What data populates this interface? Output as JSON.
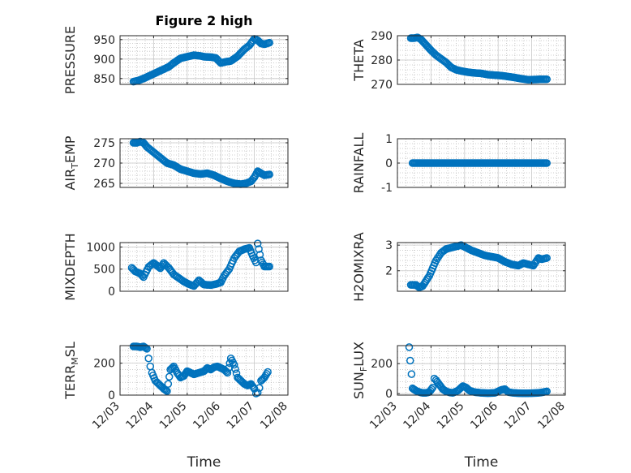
{
  "figure": {
    "title": "Figure 2 high",
    "xlabel": "Time",
    "marker_color": "#0072BD"
  },
  "chart_data": [
    {
      "type": "scatter",
      "ylabel": "PRESSURE",
      "ylim": [
        835,
        960
      ],
      "yticks": [
        850,
        900,
        950
      ],
      "x_range": [
        "12/03",
        "12/08"
      ],
      "x": [
        3.4,
        3.55,
        3.75,
        4.0,
        4.25,
        4.45,
        4.6,
        4.8,
        5.0,
        5.2,
        5.4,
        5.5,
        5.7,
        5.85,
        6.0,
        6.15,
        6.3,
        6.5,
        6.7,
        6.85,
        7.0,
        7.1,
        7.2,
        7.3,
        7.45
      ],
      "y": [
        842,
        845,
        852,
        862,
        872,
        880,
        890,
        902,
        906,
        910,
        908,
        906,
        905,
        903,
        890,
        893,
        895,
        907,
        925,
        935,
        952,
        948,
        940,
        938,
        942
      ]
    },
    {
      "type": "scatter",
      "ylabel": "THETA",
      "ylim": [
        270,
        290
      ],
      "yticks": [
        270,
        280,
        290
      ],
      "x_range": [
        "12/03",
        "12/08"
      ],
      "x": [
        3.4,
        3.5,
        3.6,
        3.7,
        3.8,
        3.9,
        4.0,
        4.15,
        4.3,
        4.45,
        4.6,
        4.75,
        4.9,
        5.1,
        5.3,
        5.5,
        5.7,
        5.9,
        6.1,
        6.3,
        6.5,
        6.7,
        6.9,
        7.1,
        7.3,
        7.45
      ],
      "y": [
        289,
        289,
        289.3,
        288.5,
        287,
        285.5,
        284,
        282,
        280.5,
        279,
        277,
        276,
        275.5,
        275,
        274.7,
        274.5,
        274,
        273.8,
        273.6,
        273.2,
        272.8,
        272.3,
        271.9,
        272,
        272.1,
        272.1
      ]
    },
    {
      "type": "scatter",
      "ylabel": "AIR_TEMP",
      "ylim": [
        264,
        276
      ],
      "yticks": [
        265,
        270,
        275
      ],
      "x_range": [
        "12/03",
        "12/08"
      ],
      "x": [
        3.4,
        3.5,
        3.6,
        3.7,
        3.8,
        3.95,
        4.1,
        4.25,
        4.4,
        4.6,
        4.8,
        5.0,
        5.2,
        5.4,
        5.6,
        5.8,
        6.0,
        6.2,
        6.4,
        6.6,
        6.75,
        6.9,
        7.0,
        7.1,
        7.2,
        7.3,
        7.45
      ],
      "y": [
        275,
        275,
        275.3,
        275,
        274,
        273,
        272,
        271,
        270,
        269.5,
        268.5,
        268,
        267.5,
        267.3,
        267.5,
        267,
        266.2,
        265.5,
        265,
        264.8,
        265,
        265.5,
        266.5,
        268,
        267.5,
        267,
        267.2
      ]
    },
    {
      "type": "scatter",
      "ylabel": "RAINFALL",
      "ylim": [
        -1,
        1
      ],
      "yticks": [
        -1,
        0,
        1
      ],
      "x_range": [
        "12/03",
        "12/08"
      ],
      "x": [
        3.45,
        3.7,
        3.95,
        4.2,
        4.45,
        4.7,
        4.95,
        5.2,
        5.45,
        5.7,
        5.95,
        6.2,
        6.45,
        6.7,
        6.95,
        7.2,
        7.45
      ],
      "y": [
        0,
        0,
        0,
        0,
        0,
        0,
        0,
        0,
        0,
        0,
        0,
        0,
        0,
        0,
        0,
        0,
        0
      ]
    },
    {
      "type": "scatter",
      "ylabel": "MIXDEPTH",
      "ylim": [
        0,
        1100
      ],
      "yticks": [
        0,
        500,
        1000
      ],
      "x_range": [
        "12/03",
        "12/08"
      ],
      "x": [
        3.35,
        3.45,
        3.6,
        3.7,
        3.85,
        4.0,
        4.1,
        4.2,
        4.3,
        4.45,
        4.6,
        4.75,
        4.9,
        5.05,
        5.2,
        5.35,
        5.5,
        5.7,
        5.85,
        6.0,
        6.1,
        6.25,
        6.4,
        6.55,
        6.7,
        6.85,
        6.95,
        7.05,
        7.1,
        7.2,
        7.3,
        7.45
      ],
      "y": [
        530,
        450,
        400,
        320,
        550,
        640,
        580,
        520,
        640,
        530,
        380,
        300,
        220,
        160,
        120,
        250,
        150,
        140,
        160,
        200,
        350,
        500,
        750,
        900,
        950,
        980,
        800,
        650,
        1080,
        700,
        560,
        560
      ]
    },
    {
      "type": "scatter",
      "ylabel": "H2OMIXRA",
      "ylim": [
        1.2,
        3.1
      ],
      "yticks": [
        2,
        3
      ],
      "x_range": [
        "12/03",
        "12/08"
      ],
      "x": [
        3.4,
        3.55,
        3.65,
        3.75,
        3.85,
        3.95,
        4.05,
        4.15,
        4.3,
        4.45,
        4.6,
        4.75,
        4.9,
        5.05,
        5.2,
        5.4,
        5.6,
        5.8,
        6.0,
        6.2,
        6.4,
        6.6,
        6.75,
        6.9,
        7.05,
        7.2,
        7.3,
        7.45
      ],
      "y": [
        1.45,
        1.45,
        1.35,
        1.4,
        1.6,
        1.8,
        2.1,
        2.4,
        2.7,
        2.85,
        2.9,
        2.95,
        3.0,
        2.9,
        2.8,
        2.7,
        2.6,
        2.55,
        2.5,
        2.35,
        2.25,
        2.2,
        2.3,
        2.25,
        2.2,
        2.5,
        2.45,
        2.5
      ]
    },
    {
      "type": "scatter",
      "ylabel": "TERR_MSL",
      "ylim": [
        0,
        310
      ],
      "yticks": [
        0,
        200
      ],
      "x_range": [
        "12/03",
        "12/08"
      ],
      "x": [
        3.4,
        3.5,
        3.6,
        3.7,
        3.8,
        3.85,
        3.9,
        3.95,
        4.05,
        4.1,
        4.2,
        4.3,
        4.4,
        4.5,
        4.6,
        4.7,
        4.8,
        4.9,
        5.0,
        5.1,
        5.2,
        5.35,
        5.5,
        5.6,
        5.7,
        5.8,
        5.9,
        6.0,
        6.1,
        6.2,
        6.3,
        6.4,
        6.5,
        6.6,
        6.7,
        6.8,
        6.9,
        7.0,
        7.05,
        7.1,
        7.15,
        7.2,
        7.3,
        7.4
      ],
      "y": [
        305,
        305,
        300,
        305,
        290,
        230,
        180,
        140,
        90,
        80,
        60,
        40,
        25,
        160,
        180,
        140,
        110,
        120,
        150,
        140,
        130,
        140,
        150,
        170,
        160,
        175,
        180,
        170,
        160,
        140,
        230,
        190,
        110,
        90,
        70,
        60,
        70,
        40,
        10,
        15,
        45,
        90,
        110,
        145
      ]
    },
    {
      "type": "scatter",
      "ylabel": "SUN_FLUX",
      "ylim": [
        -10,
        320
      ],
      "yticks": [
        0,
        200
      ],
      "x_range": [
        "12/03",
        "12/08"
      ],
      "x": [
        3.35,
        3.38,
        3.42,
        3.45,
        3.55,
        3.65,
        3.75,
        3.85,
        3.95,
        4.05,
        4.1,
        4.15,
        4.25,
        4.35,
        4.45,
        4.55,
        4.65,
        4.8,
        4.95,
        5.05,
        5.15,
        5.3,
        5.5,
        5.7,
        5.9,
        6.1,
        6.2,
        6.3,
        6.45,
        6.6,
        6.8,
        7.0,
        7.2,
        7.3,
        7.45
      ],
      "y": [
        310,
        220,
        130,
        35,
        20,
        10,
        5,
        5,
        10,
        40,
        100,
        90,
        60,
        30,
        15,
        8,
        5,
        20,
        50,
        40,
        20,
        10,
        5,
        3,
        5,
        25,
        30,
        10,
        5,
        3,
        2,
        3,
        5,
        8,
        15
      ]
    }
  ],
  "x_ticks": [
    "12/03",
    "12/04",
    "12/05",
    "12/06",
    "12/07",
    "12/08"
  ]
}
